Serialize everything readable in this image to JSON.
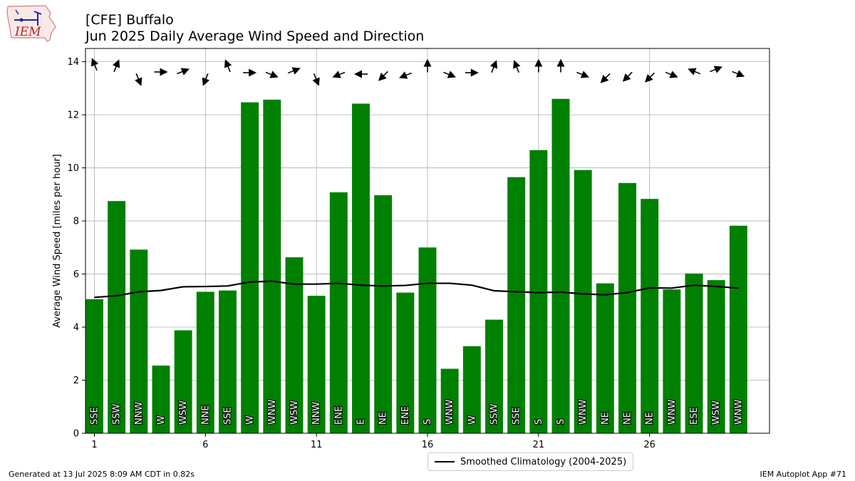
{
  "header": {
    "title_line1": "[CFE] Buffalo",
    "title_line2": "Jun 2025 Daily Average Wind Speed and Direction",
    "logo_text": "IEM"
  },
  "footer": {
    "generated": "Generated at 13 Jul 2025 8:09 AM CDT in 0.82s",
    "app": "IEM Autoplot App #71"
  },
  "chart_data": {
    "type": "bar",
    "ylabel": "Average Wind Speed [miles per hour]",
    "xlabel": "",
    "ylim": [
      0,
      14.5
    ],
    "xlim": [
      0.6,
      31.4
    ],
    "xticks": [
      1,
      6,
      11,
      16,
      21,
      26
    ],
    "yticks": [
      0,
      2,
      4,
      6,
      8,
      10,
      12,
      14
    ],
    "grid": true,
    "bar_color": "#008000",
    "days": [
      1,
      2,
      3,
      4,
      5,
      6,
      7,
      8,
      9,
      10,
      11,
      12,
      13,
      14,
      15,
      16,
      17,
      18,
      19,
      20,
      21,
      22,
      23,
      24,
      25,
      26,
      27,
      28,
      29,
      30
    ],
    "values": [
      5.05,
      8.75,
      6.92,
      2.55,
      3.88,
      5.33,
      5.38,
      12.47,
      12.57,
      6.63,
      5.18,
      9.08,
      12.42,
      8.97,
      5.3,
      7.0,
      2.43,
      3.28,
      4.28,
      9.65,
      10.67,
      12.6,
      9.92,
      5.65,
      9.43,
      8.83,
      5.42,
      6.02,
      5.77,
      7.82
    ],
    "directions": [
      "SSE",
      "SSW",
      "NNW",
      "W",
      "WSW",
      "NNE",
      "SSE",
      "W",
      "WNW",
      "WSW",
      "NNW",
      "ENE",
      "E",
      "NE",
      "ENE",
      "S",
      "WNW",
      "W",
      "SSW",
      "SSE",
      "S",
      "S",
      "WNW",
      "NE",
      "NE",
      "NE",
      "WNW",
      "ESE",
      "WSW",
      "WNW"
    ],
    "wind_from_degrees": [
      158,
      202,
      338,
      270,
      248,
      22,
      158,
      270,
      292,
      248,
      338,
      68,
      90,
      45,
      68,
      180,
      292,
      270,
      202,
      158,
      180,
      180,
      292,
      45,
      45,
      45,
      292,
      112,
      248,
      292
    ],
    "series": [
      {
        "name": "Smoothed Climatology (2004-2025)",
        "values": [
          5.12,
          5.18,
          5.33,
          5.38,
          5.52,
          5.53,
          5.55,
          5.7,
          5.73,
          5.62,
          5.62,
          5.65,
          5.58,
          5.55,
          5.57,
          5.65,
          5.65,
          5.58,
          5.37,
          5.33,
          5.3,
          5.32,
          5.25,
          5.22,
          5.3,
          5.48,
          5.47,
          5.58,
          5.53,
          5.47
        ]
      }
    ],
    "legend": {
      "placement": "bottom-center",
      "label": "Smoothed Climatology (2004-2025)"
    }
  }
}
